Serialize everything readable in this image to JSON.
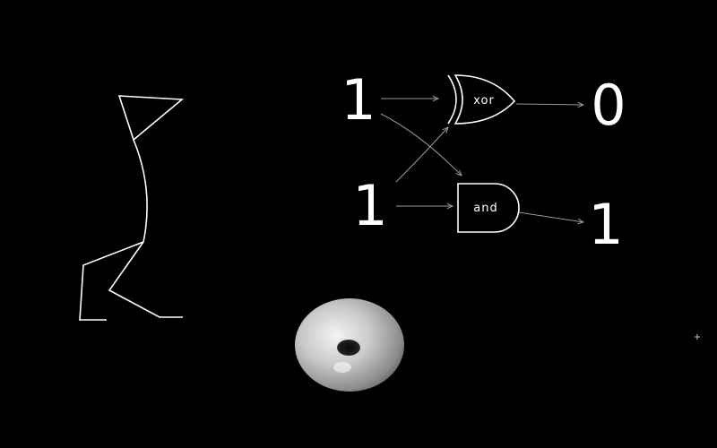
{
  "logic_circuit": {
    "input_top": "1",
    "input_bottom": "1",
    "xor_gate": {
      "label": "xor",
      "output": "0"
    },
    "and_gate": {
      "label": "and",
      "output": "1"
    }
  },
  "colors": {
    "background": "#000000",
    "foreground": "#ffffff",
    "wire": "#9a9a9a"
  },
  "icons": {
    "figure": "stick-figure-icon",
    "torus": "torus-3d-icon",
    "cursor": "crosshair-cursor-icon"
  }
}
